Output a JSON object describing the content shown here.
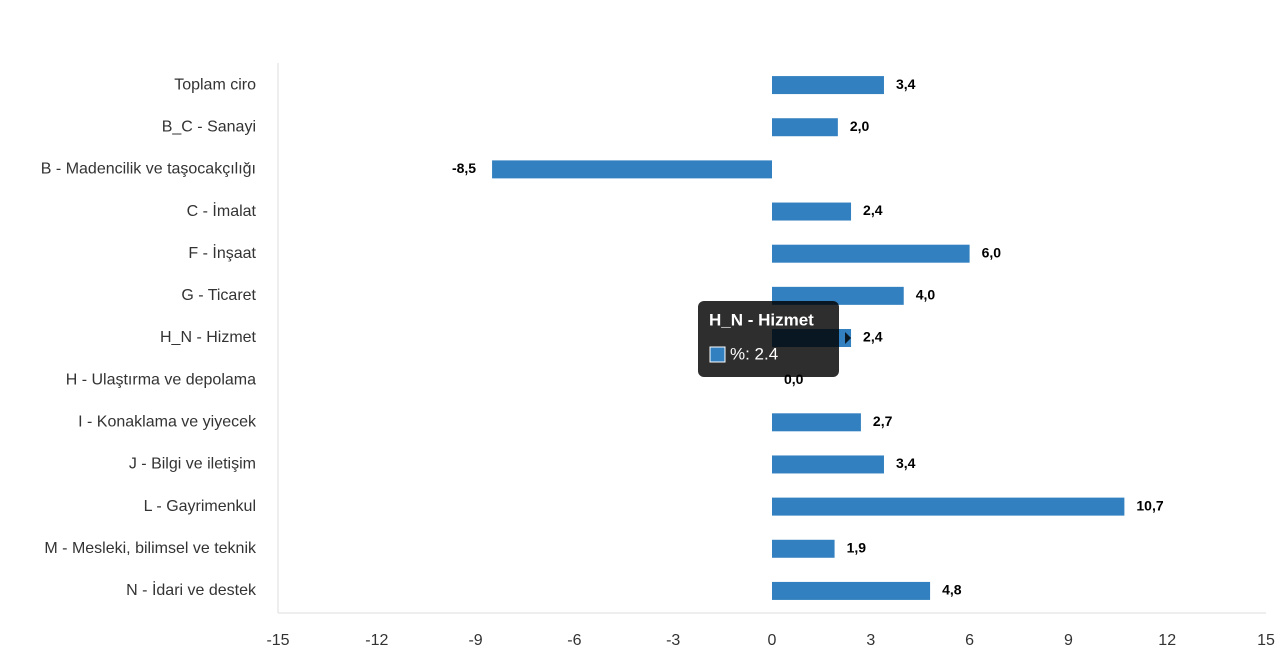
{
  "chart_data": {
    "type": "bar",
    "orientation": "horizontal",
    "categories": [
      "Toplam ciro",
      "B_C - Sanayi",
      "B - Madencilik ve taşocakçılığı",
      "C - İmalat",
      "F - İnşaat",
      "G - Ticaret",
      "H_N - Hizmet",
      "H - Ulaştırma ve depolama",
      "I - Konaklama ve yiyecek",
      "J - Bilgi ve iletişim",
      "L - Gayrimenkul",
      "M - Mesleki, bilimsel ve teknik",
      "N - İdari ve destek"
    ],
    "values": [
      3.4,
      2.0,
      -8.5,
      2.4,
      6.0,
      4.0,
      2.4,
      0.0,
      2.7,
      3.4,
      10.7,
      1.9,
      4.8
    ],
    "value_labels": [
      "3,4",
      "2,0",
      "-8,5",
      "2,4",
      "6,0",
      "4,0",
      "2,4",
      "0,0",
      "2,7",
      "3,4",
      "10,7",
      "1,9",
      "4,8"
    ],
    "color": "#3380c0",
    "xlim": [
      -15,
      15
    ],
    "xticks": [
      -15,
      -12,
      -9,
      -6,
      -3,
      0,
      3,
      6,
      9,
      12,
      15
    ],
    "grid": false,
    "tooltip": {
      "title": "H_N - Hizmet",
      "text": "%: 2.4",
      "index": 6
    }
  }
}
